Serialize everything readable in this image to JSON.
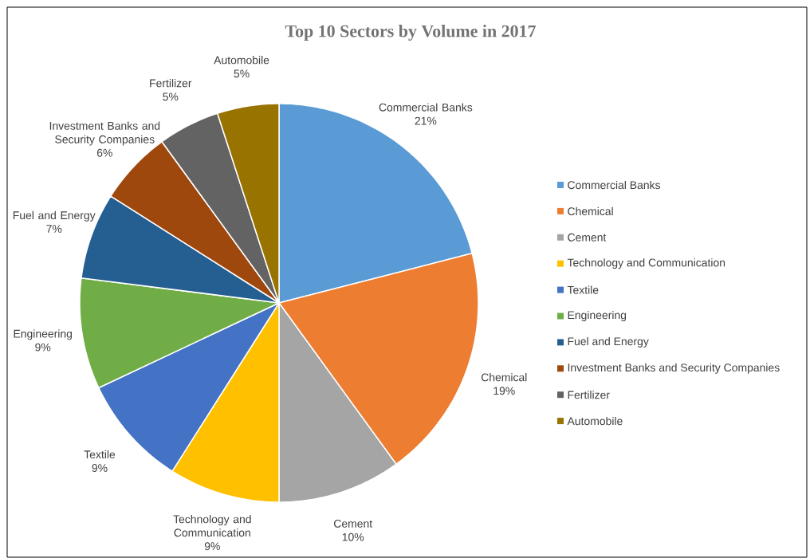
{
  "chart_data": {
    "type": "pie",
    "title": "Top 10 Sectors by Volume in 2017",
    "categories": [
      "Commercial Banks",
      "Chemical",
      "Cement",
      "Technology and Communication",
      "Textile",
      "Engineering",
      "Fuel and Energy",
      "Investment Banks and Security Companies",
      "Fertilizer",
      "Automobile"
    ],
    "values": [
      21,
      19,
      10,
      9,
      9,
      9,
      7,
      6,
      5,
      5
    ],
    "value_labels": [
      "21%",
      "19%",
      "10%",
      "9%",
      "9%",
      "9%",
      "7%",
      "6%",
      "5%",
      "5%"
    ],
    "colors": [
      "#5b9bd5",
      "#ed7d31",
      "#a5a5a5",
      "#ffc000",
      "#4472c4",
      "#70ad47",
      "#255e91",
      "#9e480e",
      "#636363",
      "#997300"
    ],
    "legend": "right"
  }
}
